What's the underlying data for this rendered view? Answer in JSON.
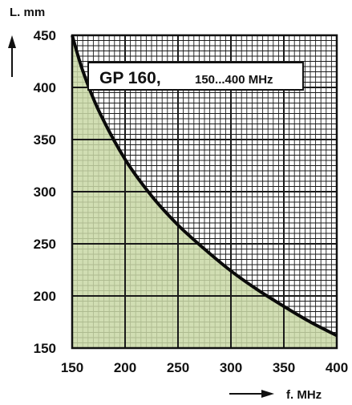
{
  "chart_data": {
    "type": "area",
    "title": "GP 160,",
    "subtitle": "150...400 MHz",
    "xlabel": "f. MHz",
    "ylabel": "L. mm",
    "xlim": [
      150,
      400
    ],
    "ylim": [
      150,
      450
    ],
    "x_ticks": [
      150,
      200,
      250,
      300,
      350,
      400
    ],
    "y_ticks": [
      150,
      200,
      250,
      300,
      350,
      400,
      450
    ],
    "x": [
      150,
      160,
      175,
      200,
      225,
      250,
      275,
      300,
      325,
      350,
      375,
      400
    ],
    "values": [
      450,
      416,
      378,
      331,
      296,
      268,
      245,
      224,
      206,
      190,
      175,
      162
    ],
    "grid": true,
    "colors": {
      "fill": "#c9d8a6",
      "curve": "#0a0a0a",
      "grid": "#1a1a1a",
      "background": "#ffffff"
    }
  }
}
